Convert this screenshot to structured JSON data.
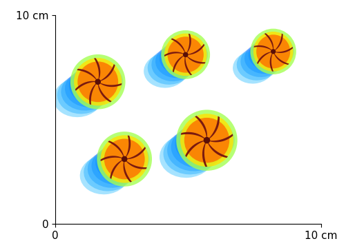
{
  "chart_data": {
    "type": "scatter",
    "x": [
      4.9,
      8.2,
      1.6,
      2.6,
      5.7
    ],
    "values": [
      8.1,
      8.25,
      6.8,
      3.1,
      4.0
    ],
    "size": [
      0.8,
      0.75,
      0.9,
      0.9,
      1.0
    ],
    "xlim": [
      0,
      10
    ],
    "ylim": [
      0,
      10
    ],
    "xticks": [
      0,
      {
        "value": 10,
        "label": "10 cm"
      }
    ],
    "yticks": [
      0,
      {
        "value": 10,
        "label": "10 cm"
      }
    ]
  }
}
